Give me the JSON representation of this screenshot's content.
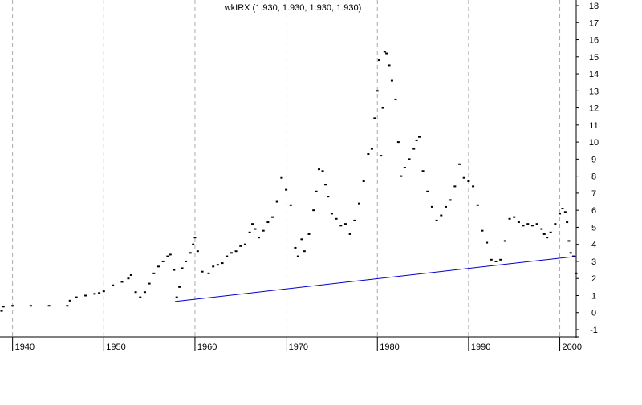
{
  "chart_data": {
    "type": "scatter",
    "title": "wkIRX (1.930, 1.930, 1.930, 1.930)",
    "xlabel": "",
    "ylabel": "",
    "xlim": [
      1938.8,
      2001.8
    ],
    "ylim": [
      -1,
      18
    ],
    "x_ticks": [
      1940,
      1950,
      1960,
      1970,
      1980,
      1990,
      2000
    ],
    "x_tick_labels": [
      "1940",
      "1950",
      "1960",
      "1970",
      "1980",
      "1990",
      "2000"
    ],
    "y_ticks": [
      -1,
      0,
      1,
      2,
      3,
      4,
      5,
      6,
      7,
      8,
      9,
      10,
      11,
      12,
      13,
      14,
      15,
      16,
      17,
      18
    ],
    "y_tick_labels": [
      "-1",
      "0",
      "1",
      "2",
      "3",
      "4",
      "5",
      "6",
      "7",
      "8",
      "9",
      "10",
      "11",
      "12",
      "13",
      "14",
      "15",
      "16",
      "17",
      "18"
    ],
    "y_axis_side": "right",
    "grid": "vertical dashed at decade ticks",
    "colors": {
      "price": "#000000",
      "trendline": "#0000cc",
      "grid": "#aaaaaa"
    },
    "series": [
      {
        "style": "dots",
        "x": [
          1938.8,
          1939.0,
          1940.0,
          1942.0,
          1944.0,
          1946.0,
          1946.3,
          1947.0,
          1948.0,
          1949.0,
          1949.5,
          1950.0,
          1951.0,
          1952.0,
          1952.7,
          1953.0,
          1953.5,
          1954.0,
          1954.5,
          1955.0,
          1955.5,
          1956.0,
          1956.5,
          1957.0,
          1957.3,
          1957.7,
          1958.0,
          1958.3,
          1958.6,
          1959.0,
          1959.5,
          1959.8,
          1960.0,
          1960.3,
          1960.8,
          1961.5,
          1962.0,
          1962.5,
          1963.0,
          1963.5,
          1964.0,
          1964.5,
          1965.0,
          1965.5,
          1966.0,
          1966.3,
          1966.6,
          1967.0,
          1967.5,
          1968.0,
          1968.5,
          1969.0,
          1969.5,
          1970.0,
          1970.5,
          1971.0,
          1971.3,
          1971.7,
          1972.0,
          1972.5,
          1973.0,
          1973.3,
          1973.6,
          1974.0,
          1974.3,
          1974.6,
          1975.0,
          1975.5,
          1976.0,
          1976.5,
          1977.0,
          1977.5,
          1978.0,
          1978.5,
          1979.0,
          1979.4,
          1979.7,
          1980.0,
          1980.2,
          1980.4,
          1980.6,
          1980.8,
          1981.0,
          1981.3,
          1981.6,
          1982.0,
          1982.3,
          1982.6,
          1983.0,
          1983.5,
          1984.0,
          1984.3,
          1984.6,
          1985.0,
          1985.5,
          1986.0,
          1986.5,
          1987.0,
          1987.5,
          1988.0,
          1988.5,
          1989.0,
          1989.5,
          1990.0,
          1990.5,
          1991.0,
          1991.5,
          1992.0,
          1992.5,
          1993.0,
          1993.5,
          1994.0,
          1994.5,
          1995.0,
          1995.5,
          1996.0,
          1996.5,
          1997.0,
          1997.5,
          1998.0,
          1998.3,
          1998.6,
          1999.0,
          1999.5,
          2000.0,
          2000.3,
          2000.6,
          2000.8,
          2001.0,
          2001.2,
          2001.5,
          2001.8
        ],
        "y": [
          0.1,
          0.35,
          0.4,
          0.4,
          0.4,
          0.4,
          0.7,
          0.9,
          1.0,
          1.1,
          1.15,
          1.25,
          1.6,
          1.8,
          2.0,
          2.2,
          1.2,
          0.9,
          1.2,
          1.7,
          2.3,
          2.7,
          3.0,
          3.3,
          3.4,
          2.5,
          0.9,
          1.5,
          2.6,
          3.0,
          3.5,
          4.0,
          4.4,
          3.6,
          2.4,
          2.3,
          2.7,
          2.8,
          2.9,
          3.3,
          3.5,
          3.6,
          3.9,
          4.0,
          4.7,
          5.2,
          4.9,
          4.4,
          4.8,
          5.3,
          5.6,
          6.5,
          7.9,
          7.2,
          6.3,
          3.8,
          3.3,
          4.3,
          3.6,
          4.6,
          6.0,
          7.1,
          8.4,
          8.3,
          7.5,
          6.8,
          5.8,
          5.5,
          5.1,
          5.2,
          4.6,
          5.4,
          6.4,
          7.7,
          9.3,
          9.6,
          11.4,
          13.0,
          14.8,
          9.2,
          12.0,
          15.3,
          15.2,
          14.5,
          13.6,
          12.5,
          10.0,
          8.0,
          8.5,
          9.0,
          9.6,
          10.1,
          10.3,
          8.3,
          7.1,
          6.2,
          5.4,
          5.7,
          6.2,
          6.6,
          7.4,
          8.7,
          7.9,
          7.7,
          7.4,
          6.3,
          4.8,
          4.1,
          3.1,
          3.0,
          3.1,
          4.2,
          5.5,
          5.6,
          5.3,
          5.1,
          5.2,
          5.1,
          5.2,
          4.9,
          4.6,
          4.4,
          4.7,
          5.2,
          5.8,
          6.1,
          5.9,
          5.3,
          4.2,
          3.5,
          3.3,
          2.3
        ]
      },
      {
        "style": "line",
        "x": [
          1957.8,
          2001.8
        ],
        "y": [
          0.65,
          3.3
        ]
      }
    ]
  }
}
